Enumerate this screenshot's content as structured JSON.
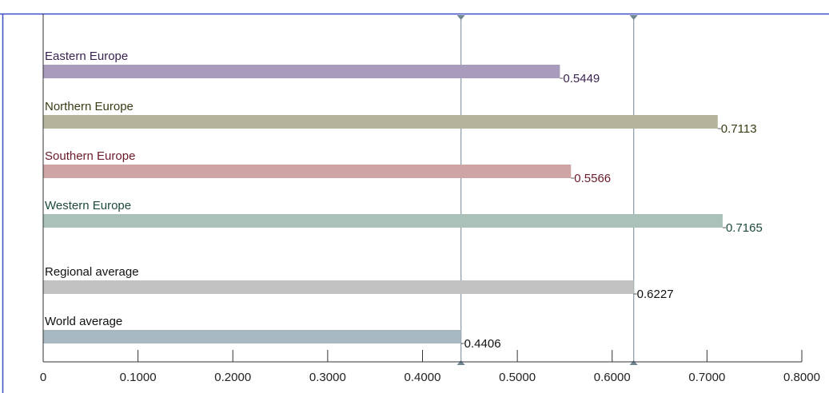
{
  "chart_data": {
    "type": "bar",
    "orientation": "horizontal",
    "categories": [
      "Eastern Europe",
      "Northern Europe",
      "Southern Europe",
      "Western Europe",
      "Regional average",
      "World average"
    ],
    "values": [
      0.5449,
      0.7113,
      0.5566,
      0.7165,
      0.6227,
      0.4406
    ],
    "value_labels": [
      "0.5449",
      "0.7113",
      "0.5566",
      "0.7165",
      "0.6227",
      "0.4406"
    ],
    "bar_colors": [
      "#a89bbb",
      "#b5b49b",
      "#cea4a4",
      "#a9c1b9",
      "#c2c2c2",
      "#a8b8c2"
    ],
    "label_colors": [
      "#3a2350",
      "#3a3a14",
      "#6a1a2a",
      "#1e4a3a",
      "#111111",
      "#111111"
    ],
    "xlim": [
      0,
      0.8
    ],
    "xticks": [
      0,
      0.1,
      0.2,
      0.3,
      0.4,
      0.5,
      0.6,
      0.7,
      0.8
    ],
    "xtick_labels": [
      "0",
      "0.1000",
      "0.2000",
      "0.3000",
      "0.4000",
      "0.5000",
      "0.6000",
      "0.7000",
      "0.8000"
    ],
    "reference_lines": [
      0.4406,
      0.6227
    ],
    "title": "",
    "xlabel": "",
    "ylabel": "",
    "grid": false,
    "colors": {
      "axis": "#333333",
      "frame": "#3b4fc4",
      "reference_line": "#8a9aa3"
    }
  }
}
